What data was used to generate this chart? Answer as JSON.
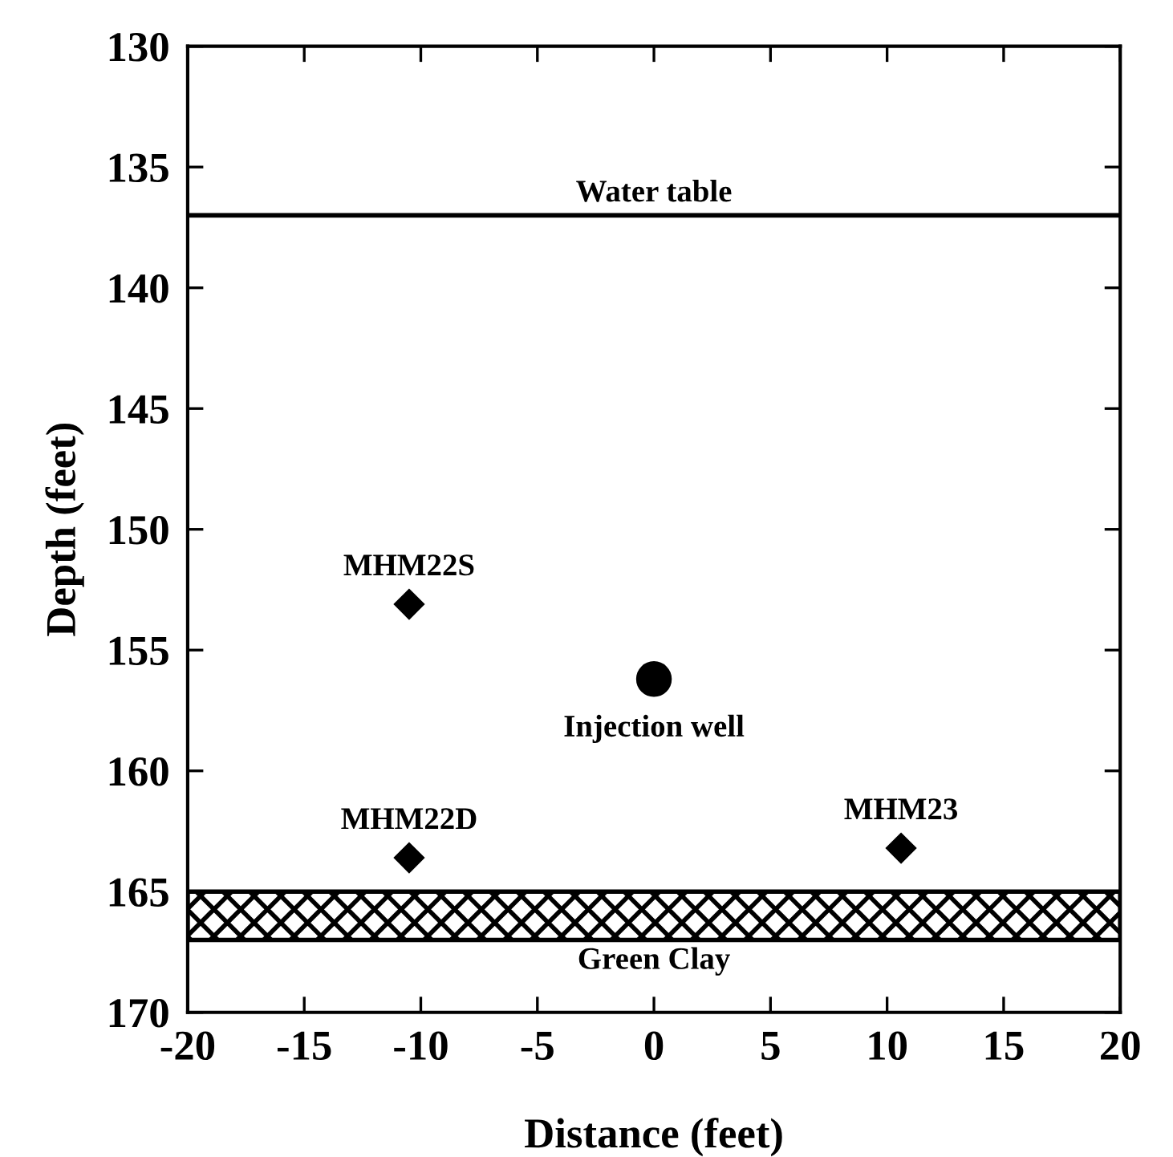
{
  "chart_data": {
    "type": "scatter",
    "xlabel": "Distance (feet)",
    "ylabel": "Depth (feet)",
    "series": [
      {
        "x": [
          -10.5,
          -10.5,
          10.6
        ],
        "values": [
          153.1,
          163.6,
          163.2
        ],
        "color": "#000000",
        "marker": "diamond"
      },
      {
        "x": [
          0
        ],
        "values": [
          156.2
        ],
        "color": "#000000",
        "marker": "circle"
      }
    ],
    "xlim": [
      -20,
      20
    ],
    "xticks": [
      -20,
      -15,
      -10,
      -5,
      0,
      5,
      10,
      15,
      20
    ],
    "ylim": [
      170,
      130
    ],
    "yticks": [
      130,
      135,
      140,
      145,
      150,
      155,
      160,
      165,
      170
    ],
    "ref_lines": [
      {
        "axis": "y",
        "value": 137,
        "label": "Water table",
        "color": "#000000",
        "line_style": "solid"
      }
    ],
    "bands": [
      {
        "axis": "y",
        "from": 165,
        "to": 167,
        "label": "Green Clay",
        "color": "#000000"
      }
    ],
    "annotations": [
      {
        "text": "MHM22S",
        "x": -10.5,
        "y": 153.1
      },
      {
        "text": "MHM22D",
        "x": -10.5,
        "y": 163.6
      },
      {
        "text": "MHM23",
        "x": 10.6,
        "y": 163.2
      },
      {
        "text": "Injection well",
        "x": 0,
        "y": 156.2
      }
    ],
    "grid": false,
    "legend": false
  }
}
